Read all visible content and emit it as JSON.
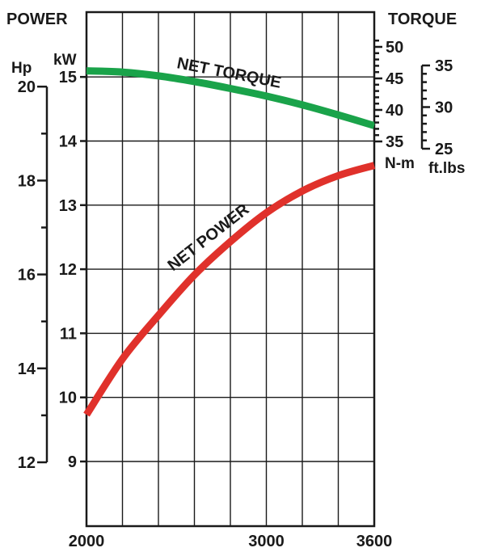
{
  "chart_data": {
    "type": "line",
    "axes": {
      "left_title": "POWER",
      "right_title": "TORQUE",
      "kw_unit": "kW",
      "hp_unit": "Hp",
      "nm_unit": "N-m",
      "ftlbs_unit": "ft.lbs",
      "x_ticks": [
        "2000",
        "3000",
        "3600"
      ],
      "kw_ticks": [
        "9",
        "10",
        "11",
        "12",
        "13",
        "14",
        "15"
      ],
      "hp_ticks": [
        "12",
        "14",
        "16",
        "18",
        "20"
      ],
      "nm_ticks": [
        "35",
        "40",
        "45",
        "50"
      ],
      "ftlbs_ticks": [
        "25",
        "30",
        "35"
      ],
      "x_range": [
        2000,
        3600
      ],
      "kw_range": [
        8,
        15.5
      ],
      "nm_range": [
        35,
        50
      ]
    },
    "series": [
      {
        "name": "NET TORQUE",
        "axis": "nm",
        "color": "#1aa34a",
        "x": [
          2000,
          2200,
          2400,
          2600,
          2800,
          3000,
          3200,
          3400,
          3600
        ],
        "values": [
          46.2,
          46.0,
          45.4,
          44.5,
          43.4,
          42.2,
          40.8,
          39.2,
          37.5
        ]
      },
      {
        "name": "NET POWER",
        "axis": "kw",
        "color": "#e0312b",
        "x": [
          2000,
          2200,
          2400,
          2600,
          2800,
          3000,
          3200,
          3400,
          3600
        ],
        "values": [
          9.73,
          10.6,
          11.28,
          11.91,
          12.43,
          12.88,
          13.22,
          13.46,
          13.62
        ]
      }
    ]
  }
}
